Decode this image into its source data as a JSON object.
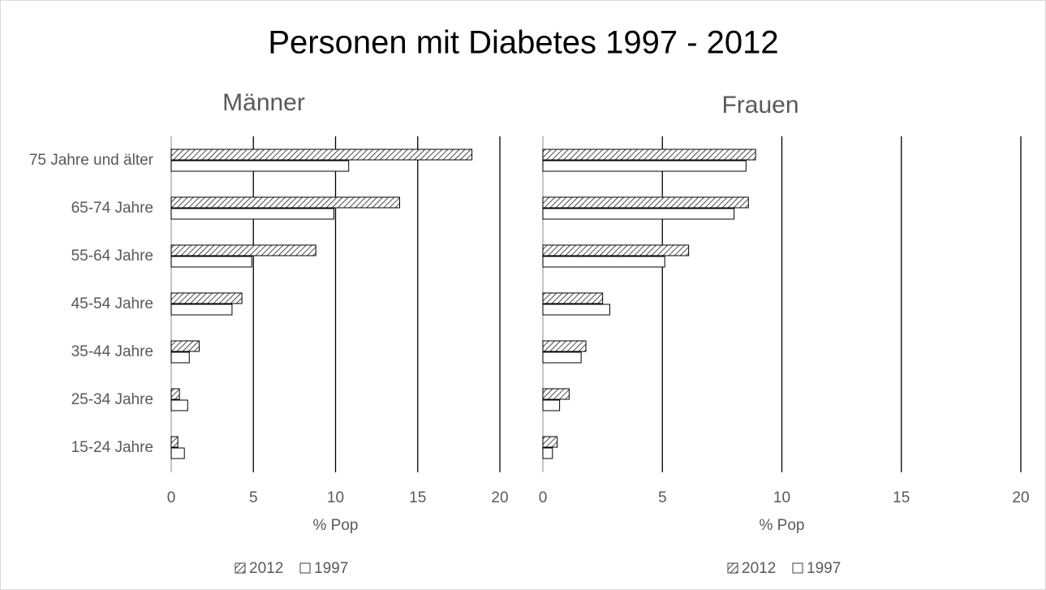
{
  "title": "Personen mit Diabetes 1997 - 2012",
  "chart_data": [
    {
      "type": "hbar",
      "title": "Männer",
      "xlabel": "% Pop",
      "categories": [
        "75 Jahre und älter",
        "65-74 Jahre",
        "55-64 Jahre",
        "45-54 Jahre",
        "35-44 Jahre",
        "25-34 Jahre",
        "15-24 Jahre"
      ],
      "series": [
        {
          "name": "2012",
          "color": "#000000",
          "pattern": "diagonal",
          "values": [
            18.3,
            13.9,
            8.8,
            4.3,
            1.7,
            0.5,
            0.4
          ]
        },
        {
          "name": "1997",
          "color": "#ffffff",
          "values": [
            10.8,
            9.9,
            4.9,
            3.7,
            1.1,
            1.0,
            0.8
          ]
        }
      ],
      "xlim": [
        0,
        20
      ],
      "xticks": [
        0,
        5,
        10,
        15,
        20
      ],
      "grid": true
    },
    {
      "type": "hbar",
      "title": "Frauen",
      "xlabel": "% Pop",
      "series": [
        {
          "name": "2012",
          "color": "#000000",
          "pattern": "diagonal",
          "values": [
            8.9,
            8.6,
            6.1,
            2.5,
            1.8,
            1.1,
            0.6
          ]
        },
        {
          "name": "1997",
          "color": "#ffffff",
          "values": [
            8.5,
            8.0,
            5.1,
            2.8,
            1.6,
            0.7,
            0.4
          ]
        }
      ],
      "xlim": [
        0,
        20
      ],
      "xticks": [
        0,
        5,
        10,
        15,
        20
      ],
      "grid": true
    }
  ]
}
